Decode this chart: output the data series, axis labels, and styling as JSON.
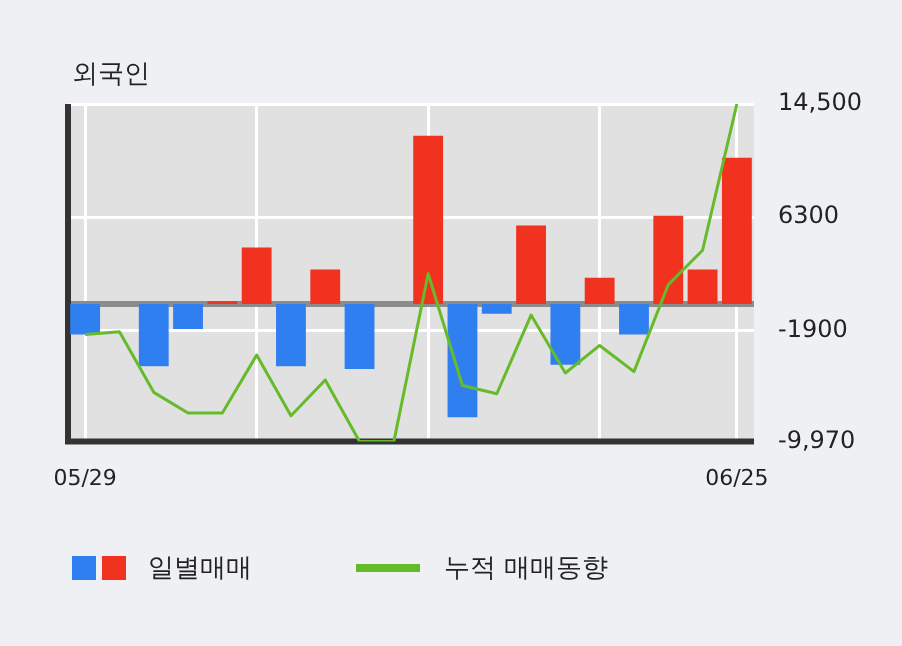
{
  "chart_data": {
    "type": "bar",
    "title": "외국인",
    "categories": [
      "05/29",
      null,
      null,
      null,
      null,
      null,
      null,
      null,
      null,
      null,
      null,
      null,
      null,
      null,
      null,
      null,
      null,
      null,
      null,
      "06/25"
    ],
    "series": [
      {
        "name": "일별매매",
        "values": [
          -2200,
          0,
          -4500,
          -1800,
          200,
          4100,
          -4500,
          2500,
          -4700,
          0,
          12200,
          -8200,
          -700,
          5700,
          -4400,
          1900,
          -2200,
          6400,
          2500,
          10600
        ],
        "colors": [
          "#2f7ff0",
          "#2f7ff0",
          "#2f7ff0",
          "#2f7ff0",
          "#f0321e",
          "#f0321e",
          "#2f7ff0",
          "#f0321e",
          "#2f7ff0",
          "#2f7ff0",
          "#f0321e",
          "#2f7ff0",
          "#2f7ff0",
          "#f0321e",
          "#2f7ff0",
          "#f0321e",
          "#2f7ff0",
          "#f0321e",
          "#f0321e",
          "#f0321e"
        ]
      },
      {
        "name": "누적 매매동향",
        "type": "line",
        "color": "#66bb2a",
        "values": [
          -2200,
          -2000,
          -6400,
          -7900,
          -7900,
          -3700,
          -8100,
          -5500,
          -9970,
          -9970,
          2200,
          -5900,
          -6500,
          -800,
          -5000,
          -3000,
          -4900,
          1400,
          3900,
          14500
        ]
      }
    ],
    "ylim": [
      -9970,
      14500
    ],
    "yticks": [
      {
        "value": 14500,
        "label": "14,500"
      },
      6300,
      -1900,
      {
        "value": -9970,
        "label": "-9,970"
      }
    ],
    "ref_lines": [
      {
        "axis": "y",
        "value": 0,
        "color": "#8c8c8c"
      }
    ],
    "grid": true,
    "legend": "bottom",
    "marker": "none"
  }
}
